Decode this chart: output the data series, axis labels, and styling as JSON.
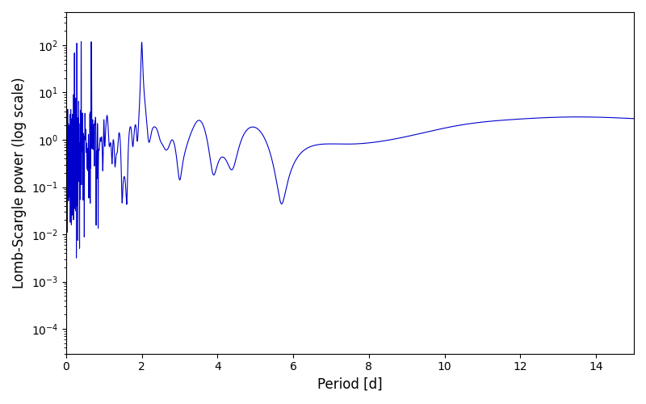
{
  "line_color": "#0000cc",
  "xlabel": "Period [d]",
  "ylabel": "Lomb-Scargle power (log scale)",
  "xlim": [
    0,
    15
  ],
  "ylim_log": [
    3e-05,
    500.0
  ],
  "line_width": 0.8,
  "figsize": [
    8.0,
    5.0
  ],
  "dpi": 100,
  "background_color": "#ffffff"
}
